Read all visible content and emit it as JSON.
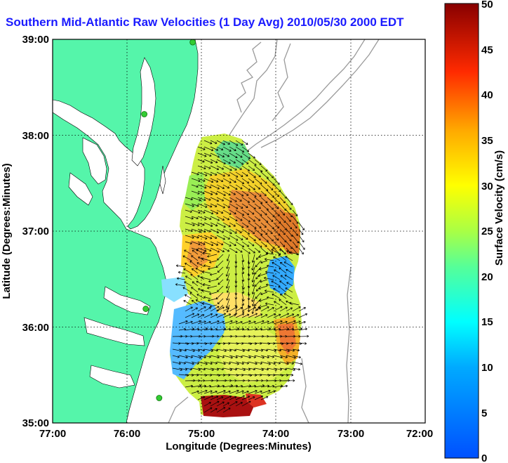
{
  "title": "Southern Mid-Atlantic Raw Velocities (1 Day Avg) 2010/05/30 2000 EDT",
  "x_axis": {
    "label": "Longitude (Degrees:Minutes)",
    "ticks": [
      "77:00",
      "76:00",
      "75:00",
      "74:00",
      "73:00",
      "72:00"
    ],
    "range": [
      -77,
      -72
    ]
  },
  "y_axis": {
    "label": "Latitude (Degrees:Minutes)",
    "ticks": [
      "35:00",
      "36:00",
      "37:00",
      "38:00",
      "39:00"
    ],
    "range": [
      35,
      39
    ]
  },
  "colorbar": {
    "label": "Surface Velocity (cm/s)",
    "ticks": [
      "0",
      "5",
      "10",
      "15",
      "20",
      "25",
      "30",
      "35",
      "40",
      "45",
      "50"
    ],
    "range": [
      0,
      50
    ],
    "colormap": "jet"
  },
  "colors": {
    "land": "#55f5aa",
    "title_text": "#1a1aff",
    "grid": "#000000",
    "bathymetry": "#9a9a9a",
    "station_marker": "#33cc33"
  },
  "grid": "dotted",
  "stations": [
    {
      "lon": -75.12,
      "lat": 38.97
    },
    {
      "lon": -75.77,
      "lat": 38.22
    },
    {
      "lon": -75.75,
      "lat": 36.19
    },
    {
      "lon": -75.57,
      "lat": 35.26
    }
  ]
}
